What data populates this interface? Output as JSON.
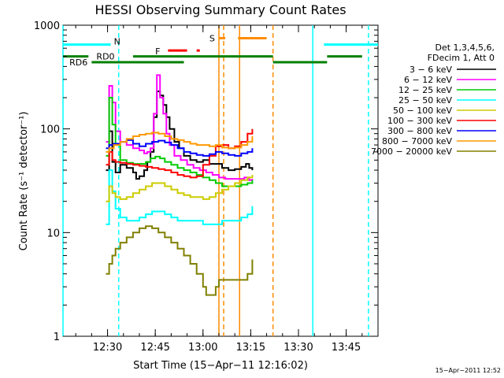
{
  "chart_data": {
    "type": "line",
    "title": "HESSI Observing Summary Count Rates",
    "xlabel": "Start Time (15−Apr−11 12:16:02)",
    "ylabel": "Count Rate (s⁻¹ detector⁻¹)",
    "x_unit": "minutes after 12:16:02",
    "xlim": [
      0,
      99
    ],
    "ylim": [
      1,
      1000
    ],
    "yscale": "log",
    "grid": false,
    "legend_placement": "right",
    "timestamp": "15−Apr−2011 12:52",
    "x_ticks": [
      {
        "x": 14,
        "label": "12:30"
      },
      {
        "x": 29,
        "label": "12:45"
      },
      {
        "x": 44,
        "label": "13:00"
      },
      {
        "x": 59,
        "label": "13:15"
      },
      {
        "x": 74,
        "label": "13:30"
      },
      {
        "x": 89,
        "label": "13:45"
      }
    ],
    "y_ticks": [
      {
        "y": 1,
        "label": "1"
      },
      {
        "y": 10,
        "label": "10"
      },
      {
        "y": 100,
        "label": "100"
      },
      {
        "y": 1000,
        "label": "1000"
      }
    ],
    "legend_header": [
      "Det 1,3,4,5,6,",
      "FDecim 1, Att 0"
    ],
    "series": [
      {
        "name": "3 − 6 keV",
        "color": "#000000",
        "points": [
          [
            13.5,
            40
          ],
          [
            14.5,
            95
          ],
          [
            15.5,
            48
          ],
          [
            16.5,
            38
          ],
          [
            18,
            45
          ],
          [
            20,
            42
          ],
          [
            22,
            38
          ],
          [
            23,
            33
          ],
          [
            24,
            35
          ],
          [
            25.5,
            40
          ],
          [
            26.5,
            48
          ],
          [
            27.5,
            60
          ],
          [
            28.5,
            130
          ],
          [
            29.5,
            230
          ],
          [
            30.5,
            210
          ],
          [
            31.5,
            170
          ],
          [
            32.5,
            130
          ],
          [
            33.5,
            100
          ],
          [
            35,
            75
          ],
          [
            36.5,
            65
          ],
          [
            38,
            55
          ],
          [
            40,
            50
          ],
          [
            42,
            48
          ],
          [
            44,
            50
          ],
          [
            46,
            46
          ],
          [
            48,
            46
          ],
          [
            50,
            42
          ],
          [
            52,
            40
          ],
          [
            54,
            41
          ],
          [
            56,
            43
          ],
          [
            57.5,
            46
          ],
          [
            58.5,
            42
          ],
          [
            59.5,
            40
          ]
        ]
      },
      {
        "name": "6 − 12 keV",
        "color": "#ff00ff",
        "points": [
          [
            13.5,
            75
          ],
          [
            14.5,
            260
          ],
          [
            15.5,
            180
          ],
          [
            16.5,
            95
          ],
          [
            18,
            75
          ],
          [
            20,
            70
          ],
          [
            22,
            65
          ],
          [
            24,
            62
          ],
          [
            25.5,
            58
          ],
          [
            26.5,
            60
          ],
          [
            27.5,
            65
          ],
          [
            28.5,
            140
          ],
          [
            29.5,
            330
          ],
          [
            30.5,
            200
          ],
          [
            31.5,
            140
          ],
          [
            32.5,
            90
          ],
          [
            33.5,
            70
          ],
          [
            35,
            55
          ],
          [
            37,
            50
          ],
          [
            39,
            45
          ],
          [
            41,
            42
          ],
          [
            43,
            40
          ],
          [
            45,
            38
          ],
          [
            47,
            36
          ],
          [
            49,
            34
          ],
          [
            51,
            33
          ],
          [
            53,
            33
          ],
          [
            55,
            33
          ],
          [
            57,
            34
          ],
          [
            58.5,
            32
          ],
          [
            59.5,
            33
          ]
        ]
      },
      {
        "name": "12 − 25 keV",
        "color": "#00cc00",
        "points": [
          [
            13.5,
            55
          ],
          [
            14.5,
            200
          ],
          [
            15.5,
            110
          ],
          [
            16.5,
            70
          ],
          [
            18,
            50
          ],
          [
            20,
            47
          ],
          [
            22,
            46
          ],
          [
            24,
            46
          ],
          [
            26,
            48
          ],
          [
            27.5,
            52
          ],
          [
            29,
            54
          ],
          [
            30.5,
            52
          ],
          [
            32,
            48
          ],
          [
            34,
            45
          ],
          [
            36,
            42
          ],
          [
            38,
            40
          ],
          [
            40,
            38
          ],
          [
            42,
            36
          ],
          [
            44,
            34
          ],
          [
            46,
            32
          ],
          [
            48,
            30
          ],
          [
            50,
            28
          ],
          [
            52,
            28
          ],
          [
            54,
            28
          ],
          [
            56,
            29
          ],
          [
            58,
            30
          ],
          [
            59.5,
            32
          ]
        ]
      },
      {
        "name": "25 − 50 keV",
        "color": "#00ffff",
        "points": [
          [
            13.5,
            12
          ],
          [
            14.5,
            40
          ],
          [
            15.5,
            25
          ],
          [
            16.5,
            17
          ],
          [
            18,
            14
          ],
          [
            20,
            13
          ],
          [
            22,
            13
          ],
          [
            24,
            14
          ],
          [
            26,
            15
          ],
          [
            28,
            16
          ],
          [
            30,
            16
          ],
          [
            32,
            15
          ],
          [
            34,
            14
          ],
          [
            36,
            13
          ],
          [
            38,
            13
          ],
          [
            40,
            13
          ],
          [
            42,
            13
          ],
          [
            44,
            12
          ],
          [
            46,
            12
          ],
          [
            48,
            12
          ],
          [
            50,
            13
          ],
          [
            52,
            13
          ],
          [
            54,
            13
          ],
          [
            56,
            14
          ],
          [
            58,
            15
          ],
          [
            59.5,
            18
          ]
        ]
      },
      {
        "name": "50 − 100 keV",
        "color": "#cccc00",
        "points": [
          [
            13.5,
            20
          ],
          [
            14.5,
            28
          ],
          [
            15.5,
            24
          ],
          [
            16.5,
            22
          ],
          [
            18,
            21
          ],
          [
            20,
            22
          ],
          [
            22,
            24
          ],
          [
            24,
            26
          ],
          [
            26,
            28
          ],
          [
            28,
            30
          ],
          [
            30,
            30
          ],
          [
            32,
            28
          ],
          [
            34,
            26
          ],
          [
            36,
            24
          ],
          [
            38,
            23
          ],
          [
            40,
            22
          ],
          [
            42,
            22
          ],
          [
            44,
            21
          ],
          [
            46,
            22
          ],
          [
            48,
            24
          ],
          [
            50,
            26
          ],
          [
            52,
            28
          ],
          [
            54,
            30
          ],
          [
            56,
            32
          ],
          [
            58,
            34
          ],
          [
            59.5,
            36
          ]
        ]
      },
      {
        "name": "100 − 300 keV",
        "color": "#ff0000",
        "points": [
          [
            13.5,
            45
          ],
          [
            14.5,
            60
          ],
          [
            15.5,
            50
          ],
          [
            16.5,
            48
          ],
          [
            18,
            47
          ],
          [
            20,
            46
          ],
          [
            22,
            45
          ],
          [
            24,
            44
          ],
          [
            26,
            43
          ],
          [
            28,
            42
          ],
          [
            30,
            41
          ],
          [
            32,
            40
          ],
          [
            34,
            38
          ],
          [
            36,
            36
          ],
          [
            38,
            35
          ],
          [
            40,
            34
          ],
          [
            42,
            35
          ],
          [
            44,
            45
          ],
          [
            46,
            55
          ],
          [
            48,
            68
          ],
          [
            50,
            70
          ],
          [
            52,
            65
          ],
          [
            54,
            68
          ],
          [
            56,
            75
          ],
          [
            58,
            90
          ],
          [
            59.5,
            100
          ]
        ]
      },
      {
        "name": "300 − 800 keV",
        "color": "#0000ff",
        "points": [
          [
            13.5,
            65
          ],
          [
            14.5,
            70
          ],
          [
            16,
            72
          ],
          [
            18,
            75
          ],
          [
            20,
            78
          ],
          [
            22,
            72
          ],
          [
            24,
            68
          ],
          [
            26,
            72
          ],
          [
            28,
            75
          ],
          [
            30,
            77
          ],
          [
            32,
            74
          ],
          [
            34,
            70
          ],
          [
            36,
            65
          ],
          [
            38,
            60
          ],
          [
            40,
            58
          ],
          [
            42,
            56
          ],
          [
            44,
            55
          ],
          [
            46,
            57
          ],
          [
            48,
            60
          ],
          [
            50,
            58
          ],
          [
            52,
            56
          ],
          [
            54,
            55
          ],
          [
            56,
            58
          ],
          [
            58,
            60
          ],
          [
            59.5,
            65
          ]
        ]
      },
      {
        "name": "800 − 7000 keV",
        "color": "#ff9900",
        "points": [
          [
            13.5,
            60
          ],
          [
            14.5,
            65
          ],
          [
            16,
            70
          ],
          [
            18,
            75
          ],
          [
            20,
            80
          ],
          [
            22,
            85
          ],
          [
            24,
            88
          ],
          [
            26,
            90
          ],
          [
            28,
            92
          ],
          [
            30,
            90
          ],
          [
            32,
            85
          ],
          [
            34,
            80
          ],
          [
            36,
            78
          ],
          [
            38,
            75
          ],
          [
            40,
            72
          ],
          [
            42,
            70
          ],
          [
            44,
            70
          ],
          [
            46,
            68
          ],
          [
            48,
            70
          ],
          [
            50,
            66
          ],
          [
            52,
            65
          ],
          [
            54,
            66
          ],
          [
            56,
            70
          ],
          [
            58,
            75
          ],
          [
            59.5,
            85
          ]
        ]
      },
      {
        "name": "7000 − 20000 keV",
        "color": "#808000",
        "points": [
          [
            13.5,
            4
          ],
          [
            14.5,
            5
          ],
          [
            15.5,
            6
          ],
          [
            16.5,
            7
          ],
          [
            18,
            8
          ],
          [
            20,
            9
          ],
          [
            22,
            10
          ],
          [
            24,
            11
          ],
          [
            26,
            11.5
          ],
          [
            28,
            11
          ],
          [
            30,
            10
          ],
          [
            32,
            9
          ],
          [
            34,
            8
          ],
          [
            36,
            7
          ],
          [
            38,
            6
          ],
          [
            40,
            5
          ],
          [
            42,
            4
          ],
          [
            44,
            3
          ],
          [
            45,
            2.5
          ],
          [
            46,
            2.5
          ],
          [
            47,
            2.5
          ],
          [
            48,
            3
          ],
          [
            49,
            3.5
          ],
          [
            50,
            3.5
          ],
          [
            52,
            3.5
          ],
          [
            54,
            3.5
          ],
          [
            56,
            3.5
          ],
          [
            58,
            4
          ],
          [
            59.5,
            5.5
          ]
        ]
      }
    ],
    "status_bars": [
      {
        "label": "N",
        "color": "#00ffff",
        "y": 650,
        "x_start": 0,
        "x_end": 15
      },
      {
        "label": "N",
        "color": "#00ffff",
        "y": 650,
        "x_start": 82,
        "x_end": 99
      },
      {
        "label": "F",
        "color": "#ff0000",
        "y": 570,
        "x_start": 33,
        "x_end": 39
      },
      {
        "label": "F",
        "color": "#ff0000",
        "y": 570,
        "x_start": 42,
        "x_end": 43
      },
      {
        "label": "S",
        "color": "#ff8c00",
        "y": 750,
        "x_start": 49,
        "x_end": 51
      },
      {
        "label": "S",
        "color": "#ff8c00",
        "y": 750,
        "x_start": 55,
        "x_end": 64
      },
      {
        "label": "RD0",
        "color": "#008000",
        "y": 500,
        "x_start": 0,
        "x_end": 8
      },
      {
        "label": "RD0",
        "color": "#008000",
        "y": 500,
        "x_start": 22,
        "x_end": 66
      },
      {
        "label": "RD0",
        "color": "#008000",
        "y": 500,
        "x_start": 83,
        "x_end": 94
      },
      {
        "label": "RD6",
        "color": "#008000",
        "y": 440,
        "x_start": 9,
        "x_end": 38
      },
      {
        "label": "RD6",
        "color": "#008000",
        "y": 440,
        "x_start": 66,
        "x_end": 83
      }
    ],
    "bar_labels": [
      {
        "text": "N",
        "color": "#00ffff",
        "x": 16,
        "y": 700
      },
      {
        "text": "F",
        "color": "#ff0000",
        "x": 29,
        "y": 560
      },
      {
        "text": "S",
        "color": "#ff8c00",
        "x": 46,
        "y": 750
      },
      {
        "text": "RD0",
        "color": "#008000",
        "x": 10.5,
        "y": 500
      },
      {
        "text": "RD6",
        "color": "#008000",
        "x": 2,
        "y": 440
      }
    ],
    "vertical_lines": [
      {
        "x": 0,
        "color": "#00ffff",
        "style": "solid"
      },
      {
        "x": 17.5,
        "color": "#00ffff",
        "style": "dashed"
      },
      {
        "x": 78.5,
        "color": "#00ffff",
        "style": "solid"
      },
      {
        "x": 96,
        "color": "#00ffff",
        "style": "dashed"
      },
      {
        "x": 49,
        "color": "#ff8c00",
        "style": "solid"
      },
      {
        "x": 50.5,
        "color": "#ff8c00",
        "style": "dashed"
      },
      {
        "x": 55.5,
        "color": "#ff8c00",
        "style": "solid"
      },
      {
        "x": 66,
        "color": "#ff8c00",
        "style": "dashed"
      }
    ]
  }
}
